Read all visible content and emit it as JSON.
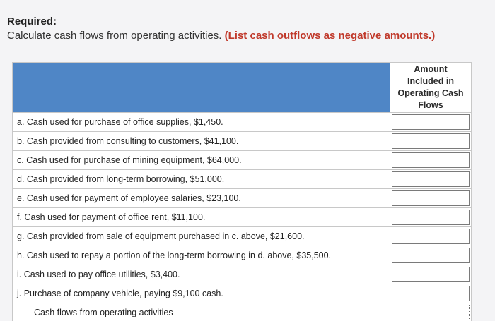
{
  "heading": "Required:",
  "instruction": "Calculate cash flows from operating activities.",
  "instruction_note": "(List cash outflows as negative amounts.)",
  "table": {
    "amount_header": [
      "Amount",
      "Included in",
      "Operating Cash",
      "Flows"
    ],
    "rows": [
      {
        "text": "a. Cash used for purchase of office supplies, $1,450."
      },
      {
        "text": "b. Cash provided from consulting to customers, $41,100."
      },
      {
        "text": "c. Cash used for purchase of mining equipment, $64,000."
      },
      {
        "text": "d. Cash provided from long-term borrowing, $51,000."
      },
      {
        "text": "e. Cash used for payment of employee salaries, $23,100."
      },
      {
        "text": "f. Cash used for payment of office rent, $11,100."
      },
      {
        "text": "g. Cash provided from sale of equipment purchased in c. above, $21,600."
      },
      {
        "text": "h. Cash used to repay a portion of the long-term borrowing in d. above, $35,500."
      },
      {
        "text": "i. Cash used to pay office utilities, $3,400."
      },
      {
        "text": "j. Purchase of company vehicle, paying $9,100 cash."
      }
    ],
    "total_label": "Cash flows from operating activities"
  },
  "colors": {
    "header_blue": "#4f86c6",
    "note_red": "#c0392b"
  }
}
